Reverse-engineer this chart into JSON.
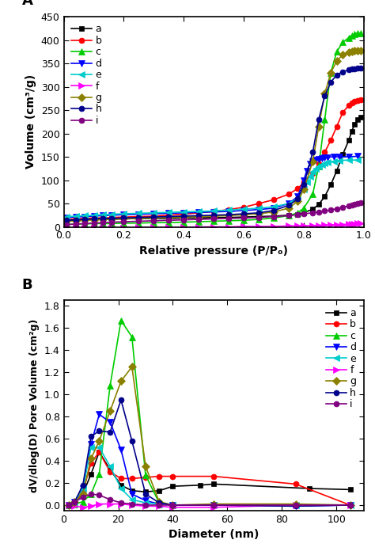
{
  "panel_A": {
    "xlabel": "Relative pressure (P/Pₒ)",
    "ylabel": "Volume (cm³/g)",
    "xlim": [
      0.0,
      1.0
    ],
    "ylim": [
      0,
      450
    ],
    "yticks": [
      0,
      50,
      100,
      150,
      200,
      250,
      300,
      350,
      400,
      450
    ],
    "xticks": [
      0.0,
      0.2,
      0.4,
      0.6,
      0.8,
      1.0
    ],
    "series": {
      "a": {
        "color": "#000000",
        "marker": "s",
        "x": [
          0.01,
          0.04,
          0.07,
          0.1,
          0.13,
          0.16,
          0.2,
          0.25,
          0.3,
          0.35,
          0.4,
          0.45,
          0.5,
          0.55,
          0.6,
          0.65,
          0.7,
          0.75,
          0.78,
          0.8,
          0.83,
          0.85,
          0.87,
          0.89,
          0.91,
          0.93,
          0.95,
          0.96,
          0.97,
          0.98,
          0.99
        ],
        "y": [
          14,
          15,
          16,
          16,
          17,
          17,
          17,
          18,
          18,
          18,
          19,
          19,
          20,
          20,
          21,
          22,
          23,
          25,
          27,
          30,
          38,
          48,
          65,
          90,
          120,
          155,
          185,
          205,
          220,
          230,
          235
        ]
      },
      "b": {
        "color": "#ff0000",
        "marker": "o",
        "x": [
          0.01,
          0.04,
          0.07,
          0.1,
          0.13,
          0.16,
          0.2,
          0.25,
          0.3,
          0.35,
          0.4,
          0.45,
          0.5,
          0.55,
          0.6,
          0.65,
          0.7,
          0.75,
          0.78,
          0.8,
          0.83,
          0.85,
          0.87,
          0.89,
          0.91,
          0.93,
          0.95,
          0.96,
          0.97,
          0.98,
          0.99
        ],
        "y": [
          16,
          17,
          18,
          19,
          19,
          20,
          21,
          22,
          23,
          25,
          27,
          30,
          33,
          37,
          42,
          50,
          58,
          70,
          82,
          95,
          115,
          135,
          160,
          185,
          215,
          245,
          260,
          265,
          268,
          270,
          272
        ]
      },
      "c": {
        "color": "#00cc00",
        "marker": "^",
        "x": [
          0.01,
          0.04,
          0.07,
          0.1,
          0.13,
          0.16,
          0.2,
          0.25,
          0.3,
          0.35,
          0.4,
          0.45,
          0.5,
          0.55,
          0.6,
          0.65,
          0.7,
          0.75,
          0.78,
          0.8,
          0.83,
          0.85,
          0.87,
          0.89,
          0.91,
          0.93,
          0.95,
          0.96,
          0.97,
          0.98,
          0.99
        ],
        "y": [
          5,
          6,
          6,
          7,
          7,
          7,
          8,
          8,
          9,
          9,
          10,
          11,
          12,
          13,
          14,
          16,
          19,
          24,
          30,
          40,
          70,
          130,
          230,
          330,
          375,
          395,
          405,
          410,
          413,
          415,
          415
        ]
      },
      "d": {
        "color": "#0000ff",
        "marker": "v",
        "x": [
          0.01,
          0.04,
          0.07,
          0.1,
          0.13,
          0.16,
          0.2,
          0.25,
          0.3,
          0.35,
          0.4,
          0.45,
          0.5,
          0.55,
          0.6,
          0.65,
          0.7,
          0.75,
          0.78,
          0.8,
          0.81,
          0.82,
          0.83,
          0.84,
          0.85,
          0.86,
          0.87,
          0.88,
          0.9,
          0.92,
          0.95,
          0.98
        ],
        "y": [
          20,
          21,
          22,
          23,
          24,
          25,
          26,
          27,
          28,
          29,
          30,
          31,
          32,
          33,
          35,
          37,
          40,
          50,
          65,
          100,
          120,
          135,
          140,
          143,
          145,
          147,
          148,
          149,
          150,
          150,
          150,
          151
        ]
      },
      "e": {
        "color": "#00cccc",
        "marker": "<",
        "x": [
          0.01,
          0.04,
          0.07,
          0.1,
          0.13,
          0.16,
          0.2,
          0.25,
          0.3,
          0.35,
          0.4,
          0.45,
          0.5,
          0.55,
          0.6,
          0.65,
          0.7,
          0.75,
          0.78,
          0.8,
          0.81,
          0.82,
          0.83,
          0.84,
          0.85,
          0.86,
          0.87,
          0.88,
          0.9,
          0.92,
          0.95,
          0.98
        ],
        "y": [
          22,
          23,
          24,
          25,
          26,
          27,
          28,
          29,
          30,
          31,
          32,
          33,
          34,
          36,
          38,
          40,
          43,
          50,
          60,
          80,
          95,
          108,
          118,
          125,
          130,
          133,
          136,
          138,
          140,
          142,
          143,
          143
        ]
      },
      "f": {
        "color": "#ff00ff",
        "marker": ">",
        "x": [
          0.01,
          0.04,
          0.07,
          0.1,
          0.13,
          0.16,
          0.2,
          0.25,
          0.3,
          0.35,
          0.4,
          0.45,
          0.5,
          0.55,
          0.6,
          0.65,
          0.7,
          0.75,
          0.78,
          0.8,
          0.83,
          0.85,
          0.87,
          0.89,
          0.91,
          0.93,
          0.95,
          0.96,
          0.97,
          0.98,
          0.99
        ],
        "y": [
          -3,
          -3,
          -3,
          -2,
          -2,
          -2,
          -2,
          -1,
          -1,
          -1,
          -1,
          0,
          0,
          0,
          1,
          1,
          1,
          2,
          2,
          2,
          3,
          3,
          4,
          4,
          5,
          5,
          6,
          6,
          6,
          7,
          7
        ]
      },
      "g": {
        "color": "#8b8000",
        "marker": "D",
        "x": [
          0.01,
          0.04,
          0.07,
          0.1,
          0.13,
          0.16,
          0.2,
          0.25,
          0.3,
          0.35,
          0.4,
          0.45,
          0.5,
          0.55,
          0.6,
          0.65,
          0.7,
          0.75,
          0.78,
          0.8,
          0.83,
          0.85,
          0.87,
          0.89,
          0.91,
          0.93,
          0.95,
          0.96,
          0.97,
          0.98,
          0.99
        ],
        "y": [
          12,
          13,
          14,
          15,
          16,
          16,
          17,
          18,
          19,
          20,
          21,
          22,
          23,
          24,
          26,
          28,
          32,
          40,
          55,
          80,
          140,
          215,
          285,
          330,
          355,
          368,
          373,
          375,
          377,
          378,
          378
        ]
      },
      "h": {
        "color": "#00008b",
        "marker": "o",
        "x": [
          0.01,
          0.04,
          0.07,
          0.1,
          0.13,
          0.16,
          0.2,
          0.25,
          0.3,
          0.35,
          0.4,
          0.45,
          0.5,
          0.55,
          0.6,
          0.65,
          0.7,
          0.75,
          0.78,
          0.8,
          0.83,
          0.85,
          0.87,
          0.89,
          0.91,
          0.93,
          0.95,
          0.96,
          0.97,
          0.98,
          0.99
        ],
        "y": [
          14,
          15,
          16,
          17,
          18,
          18,
          19,
          20,
          21,
          22,
          23,
          24,
          25,
          26,
          28,
          30,
          35,
          46,
          60,
          90,
          160,
          230,
          280,
          310,
          325,
          332,
          336,
          338,
          339,
          340,
          340
        ]
      },
      "i": {
        "color": "#800080",
        "marker": "o",
        "x": [
          0.01,
          0.04,
          0.07,
          0.1,
          0.13,
          0.16,
          0.2,
          0.25,
          0.3,
          0.35,
          0.4,
          0.45,
          0.5,
          0.55,
          0.6,
          0.65,
          0.7,
          0.75,
          0.78,
          0.8,
          0.83,
          0.85,
          0.87,
          0.89,
          0.91,
          0.93,
          0.95,
          0.96,
          0.97,
          0.98,
          0.99
        ],
        "y": [
          5,
          6,
          7,
          8,
          9,
          10,
          11,
          12,
          13,
          14,
          15,
          16,
          17,
          18,
          19,
          20,
          22,
          24,
          26,
          28,
          30,
          32,
          34,
          36,
          39,
          42,
          45,
          47,
          49,
          50,
          52
        ]
      }
    }
  },
  "panel_B": {
    "xlabel": "Diameter (nm)",
    "ylabel": "dV/dlog(D) Pore Volume (cm²g)",
    "xlim": [
      0,
      110
    ],
    "ylim": [
      -0.05,
      1.85
    ],
    "yticks": [
      0.0,
      0.2,
      0.4,
      0.6,
      0.8,
      1.0,
      1.2,
      1.4,
      1.6,
      1.8
    ],
    "xticks": [
      0,
      20,
      40,
      60,
      80,
      100
    ],
    "series": {
      "a": {
        "color": "#000000",
        "marker": "s",
        "x": [
          2,
          4,
          7,
          10,
          13,
          17,
          21,
          25,
          30,
          35,
          40,
          50,
          55,
          90,
          105
        ],
        "y": [
          0.0,
          0.02,
          0.1,
          0.28,
          0.48,
          0.32,
          0.18,
          0.13,
          0.12,
          0.13,
          0.17,
          0.18,
          0.19,
          0.15,
          0.14
        ]
      },
      "b": {
        "color": "#ff0000",
        "marker": "o",
        "x": [
          2,
          4,
          7,
          10,
          13,
          17,
          21,
          25,
          30,
          35,
          40,
          55,
          85,
          105
        ],
        "y": [
          0.0,
          0.02,
          0.12,
          0.38,
          0.48,
          0.3,
          0.24,
          0.24,
          0.25,
          0.26,
          0.26,
          0.26,
          0.19,
          0.0
        ]
      },
      "c": {
        "color": "#00cc00",
        "marker": "^",
        "x": [
          2,
          4,
          7,
          10,
          13,
          17,
          21,
          25,
          30,
          35,
          40
        ],
        "y": [
          0.0,
          0.01,
          0.03,
          0.1,
          0.28,
          1.08,
          1.67,
          1.52,
          0.27,
          0.02,
          0.0
        ]
      },
      "d": {
        "color": "#0000ff",
        "marker": "v",
        "x": [
          2,
          4,
          7,
          10,
          13,
          17,
          21,
          25,
          30,
          35,
          40,
          55,
          85,
          105
        ],
        "y": [
          0.0,
          0.03,
          0.15,
          0.55,
          0.82,
          0.75,
          0.5,
          0.1,
          0.04,
          0.01,
          0.0,
          0.0,
          -0.01,
          0.0
        ]
      },
      "e": {
        "color": "#00cccc",
        "marker": "<",
        "x": [
          2,
          4,
          7,
          10,
          13,
          17,
          21,
          25,
          30,
          35,
          40,
          55,
          85,
          105
        ],
        "y": [
          0.0,
          0.03,
          0.15,
          0.52,
          0.52,
          0.35,
          0.15,
          0.05,
          0.02,
          0.01,
          0.0,
          0.0,
          0.0,
          0.0
        ]
      },
      "f": {
        "color": "#ff00ff",
        "marker": ">",
        "x": [
          2,
          4,
          7,
          10,
          13,
          17,
          21,
          25,
          30,
          35,
          40,
          55,
          85,
          105
        ],
        "y": [
          0.0,
          -0.01,
          -0.02,
          -0.01,
          0.01,
          0.01,
          0.01,
          0.0,
          -0.01,
          -0.01,
          -0.02,
          -0.02,
          0.0,
          0.0
        ]
      },
      "g": {
        "color": "#8b8000",
        "marker": "D",
        "x": [
          2,
          4,
          7,
          10,
          13,
          17,
          21,
          25,
          30,
          35,
          40,
          55,
          85,
          105
        ],
        "y": [
          0.0,
          0.03,
          0.1,
          0.42,
          0.58,
          0.85,
          1.12,
          1.25,
          0.35,
          0.03,
          0.0,
          0.01,
          0.01,
          0.0
        ]
      },
      "h": {
        "color": "#00008b",
        "marker": "o",
        "x": [
          2,
          4,
          7,
          10,
          13,
          17,
          21,
          25,
          30,
          35,
          40,
          55,
          85,
          105
        ],
        "y": [
          0.0,
          0.03,
          0.18,
          0.62,
          0.67,
          0.66,
          0.95,
          0.58,
          0.1,
          0.02,
          0.0,
          0.0,
          -0.01,
          0.0
        ]
      },
      "i": {
        "color": "#800080",
        "marker": "o",
        "x": [
          2,
          4,
          7,
          10,
          13,
          17,
          21,
          25,
          30,
          35,
          40,
          55,
          85,
          105
        ],
        "y": [
          0.0,
          0.03,
          0.07,
          0.1,
          0.09,
          0.05,
          0.02,
          0.01,
          0.0,
          0.0,
          0.0,
          0.0,
          0.0,
          0.0
        ]
      }
    }
  }
}
